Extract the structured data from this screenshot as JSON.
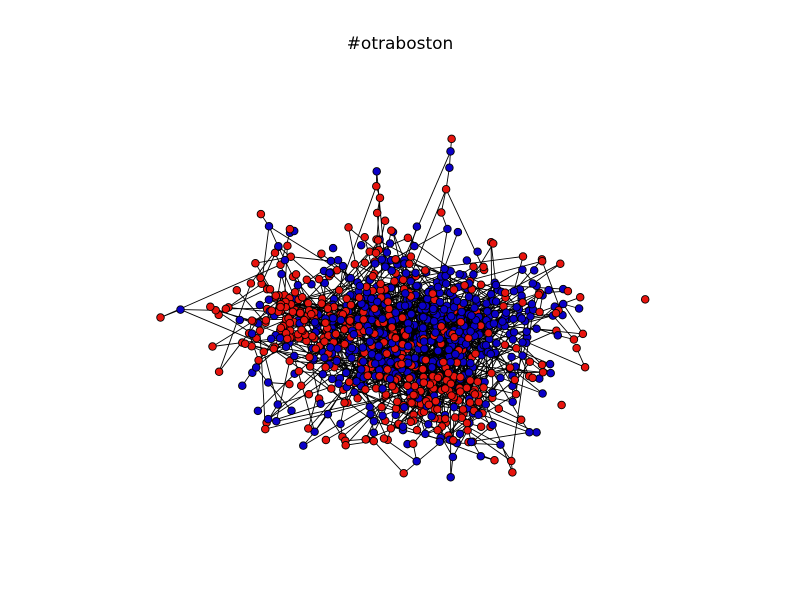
{
  "title": "#otraboston",
  "graph": {
    "type": "network",
    "node_colors": {
      "red": "#e8140e",
      "blue": "#0b00c8"
    },
    "edge_color": "#000000",
    "node_outline": "#000000",
    "axes_visible": false,
    "layout": "force-directed"
  }
}
